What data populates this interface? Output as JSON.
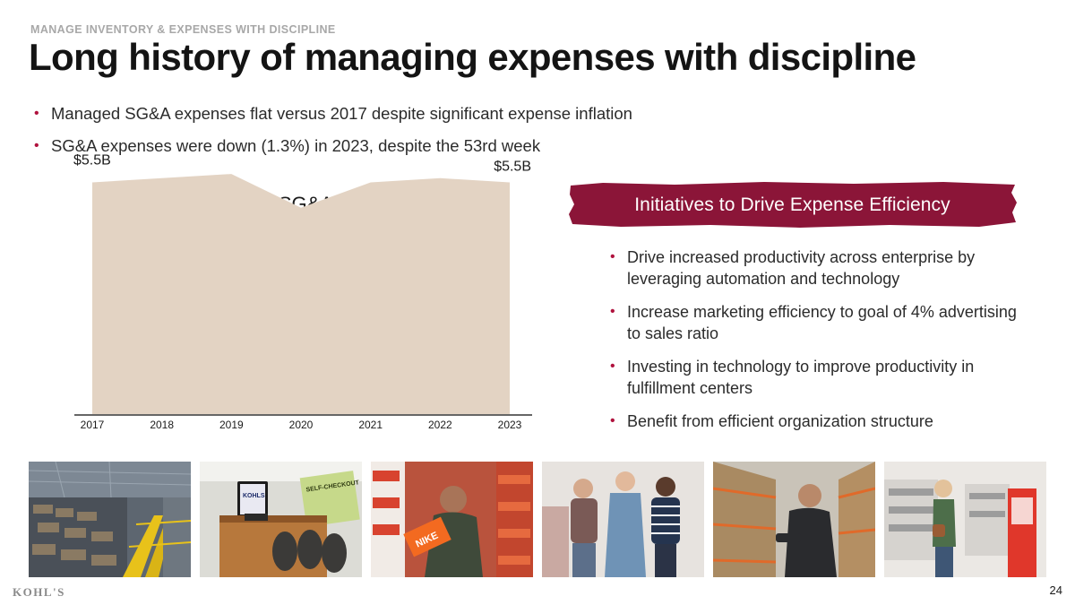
{
  "header": {
    "eyebrow": "MANAGE INVENTORY & EXPENSES WITH DISCIPLINE",
    "title": "Long history of managing expenses with discipline"
  },
  "top_bullets": [
    "Managed SG&A expenses flat versus 2017 despite significant expense inflation",
    "SG&A expenses were down (1.3%) in 2023, despite the 53rd week"
  ],
  "chart_data": {
    "type": "area",
    "title": "Flat SG&A",
    "categories": [
      "2017",
      "2018",
      "2019",
      "2020",
      "2021",
      "2022",
      "2023"
    ],
    "values": [
      5.5,
      5.6,
      5.7,
      4.9,
      5.5,
      5.6,
      5.5
    ],
    "unit": "$B",
    "annotations": [
      {
        "category": "2017",
        "label": "$5.5B"
      },
      {
        "category": "2023",
        "label": "$5.5B"
      }
    ],
    "ylim": [
      0,
      6
    ],
    "xlabel": "",
    "ylabel": "",
    "color": "#e3d3c3"
  },
  "initiatives": {
    "heading": "Initiatives to Drive Expense Efficiency",
    "banner_color": "#8b1538",
    "items": [
      "Drive increased productivity across enterprise by leveraging automation and technology",
      "Increase marketing efficiency to goal of 4% advertising to sales ratio",
      "Investing in technology to improve productivity in fulfillment centers",
      "Benefit from efficient organization structure"
    ]
  },
  "photos": [
    {
      "name": "distribution-center"
    },
    {
      "name": "self-checkout",
      "sign_text": "SELF-CHECKOUT",
      "screen_text": "KOHLS"
    },
    {
      "name": "associate-with-shoebox",
      "box_text": "NIKE"
    },
    {
      "name": "associates-group"
    },
    {
      "name": "associate-stockroom"
    },
    {
      "name": "customer-pickup"
    }
  ],
  "footer": {
    "logo": "KOHL'S",
    "page_number": "24"
  },
  "colors": {
    "accent": "#b0123d",
    "banner": "#8b1538",
    "area": "#e3d3c3"
  }
}
